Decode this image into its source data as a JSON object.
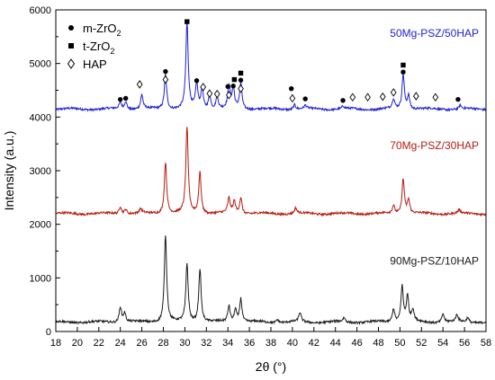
{
  "chart_data": {
    "type": "line",
    "xlabel": "2θ (°)",
    "ylabel": "Intensity (a.u.)",
    "xlim": [
      18,
      58
    ],
    "ylim": [
      0,
      6000
    ],
    "x_ticks": [
      "18",
      "20",
      "22",
      "24",
      "26",
      "28",
      "30",
      "32",
      "34",
      "36",
      "38",
      "40",
      "42",
      "44",
      "46",
      "48",
      "50",
      "52",
      "54",
      "56",
      "58"
    ],
    "y_ticks": [
      "0",
      "1000",
      "2000",
      "3000",
      "4000",
      "5000",
      "6000"
    ],
    "grid": false,
    "legend": {
      "position": "top-left",
      "entries": [
        {
          "marker": "circle",
          "label": "m-ZrO",
          "sub": "2"
        },
        {
          "marker": "square",
          "label": "t-ZrO",
          "sub": "2"
        },
        {
          "marker": "diamond",
          "label": "HAP",
          "sub": ""
        }
      ]
    },
    "series": [
      {
        "name": "50Mg-PSZ/50HAP",
        "color": "#1f1fd6",
        "baseline": 4150,
        "peaks": [
          [
            24.0,
            130
          ],
          [
            24.5,
            150
          ],
          [
            26.0,
            260
          ],
          [
            28.2,
            650
          ],
          [
            30.2,
            1600
          ],
          [
            31.1,
            450
          ],
          [
            31.6,
            370
          ],
          [
            32.3,
            250
          ],
          [
            33.0,
            230
          ],
          [
            34.1,
            420
          ],
          [
            34.5,
            380
          ],
          [
            35.2,
            480
          ],
          [
            40.2,
            90
          ],
          [
            41.2,
            60
          ],
          [
            44.7,
            50
          ],
          [
            49.4,
            180
          ],
          [
            50.3,
            650
          ],
          [
            50.8,
            260
          ],
          [
            55.6,
            70
          ]
        ]
      },
      {
        "name": "70Mg-PSZ/30HAP",
        "color": "#b51c0f",
        "baseline": 2200,
        "peaks": [
          [
            24.0,
            140
          ],
          [
            24.5,
            90
          ],
          [
            25.9,
            80
          ],
          [
            28.2,
            970
          ],
          [
            30.2,
            1600
          ],
          [
            31.4,
            780
          ],
          [
            34.1,
            280
          ],
          [
            34.6,
            230
          ],
          [
            35.2,
            300
          ],
          [
            40.3,
            100
          ],
          [
            49.4,
            150
          ],
          [
            50.3,
            650
          ],
          [
            50.8,
            260
          ],
          [
            55.5,
            60
          ]
        ]
      },
      {
        "name": "90Mg-PSZ/10HAP",
        "color": "#1c1c1c",
        "baseline": 175,
        "peaks": [
          [
            24.0,
            290
          ],
          [
            24.4,
            170
          ],
          [
            28.2,
            1630
          ],
          [
            30.2,
            1080
          ],
          [
            31.4,
            1000
          ],
          [
            34.1,
            300
          ],
          [
            34.7,
            240
          ],
          [
            35.2,
            440
          ],
          [
            38.6,
            60
          ],
          [
            40.7,
            170
          ],
          [
            44.8,
            80
          ],
          [
            49.4,
            250
          ],
          [
            50.2,
            670
          ],
          [
            50.7,
            470
          ],
          [
            51.2,
            220
          ],
          [
            54.0,
            160
          ],
          [
            55.3,
            130
          ],
          [
            56.3,
            90
          ]
        ]
      }
    ],
    "markers": {
      "circle": [
        [
          24.0,
          4330
        ],
        [
          24.5,
          4350
        ],
        [
          28.2,
          4850
        ],
        [
          31.1,
          4680
        ],
        [
          34.0,
          4570
        ],
        [
          34.5,
          4580
        ],
        [
          35.2,
          4690
        ],
        [
          39.9,
          4530
        ],
        [
          41.2,
          4340
        ],
        [
          44.7,
          4310
        ],
        [
          50.3,
          4840
        ],
        [
          55.4,
          4330
        ]
      ],
      "square": [
        [
          30.2,
          5780
        ],
        [
          34.6,
          4700
        ],
        [
          35.2,
          4820
        ],
        [
          50.3,
          4970
        ]
      ],
      "diamond": [
        [
          25.8,
          4610
        ],
        [
          28.2,
          4700
        ],
        [
          31.7,
          4560
        ],
        [
          32.3,
          4440
        ],
        [
          33.0,
          4430
        ],
        [
          34.1,
          4410
        ],
        [
          35.2,
          4530
        ],
        [
          40.0,
          4350
        ],
        [
          45.6,
          4370
        ],
        [
          47.0,
          4370
        ],
        [
          48.4,
          4380
        ],
        [
          49.4,
          4460
        ],
        [
          51.5,
          4390
        ],
        [
          53.3,
          4370
        ]
      ]
    }
  }
}
